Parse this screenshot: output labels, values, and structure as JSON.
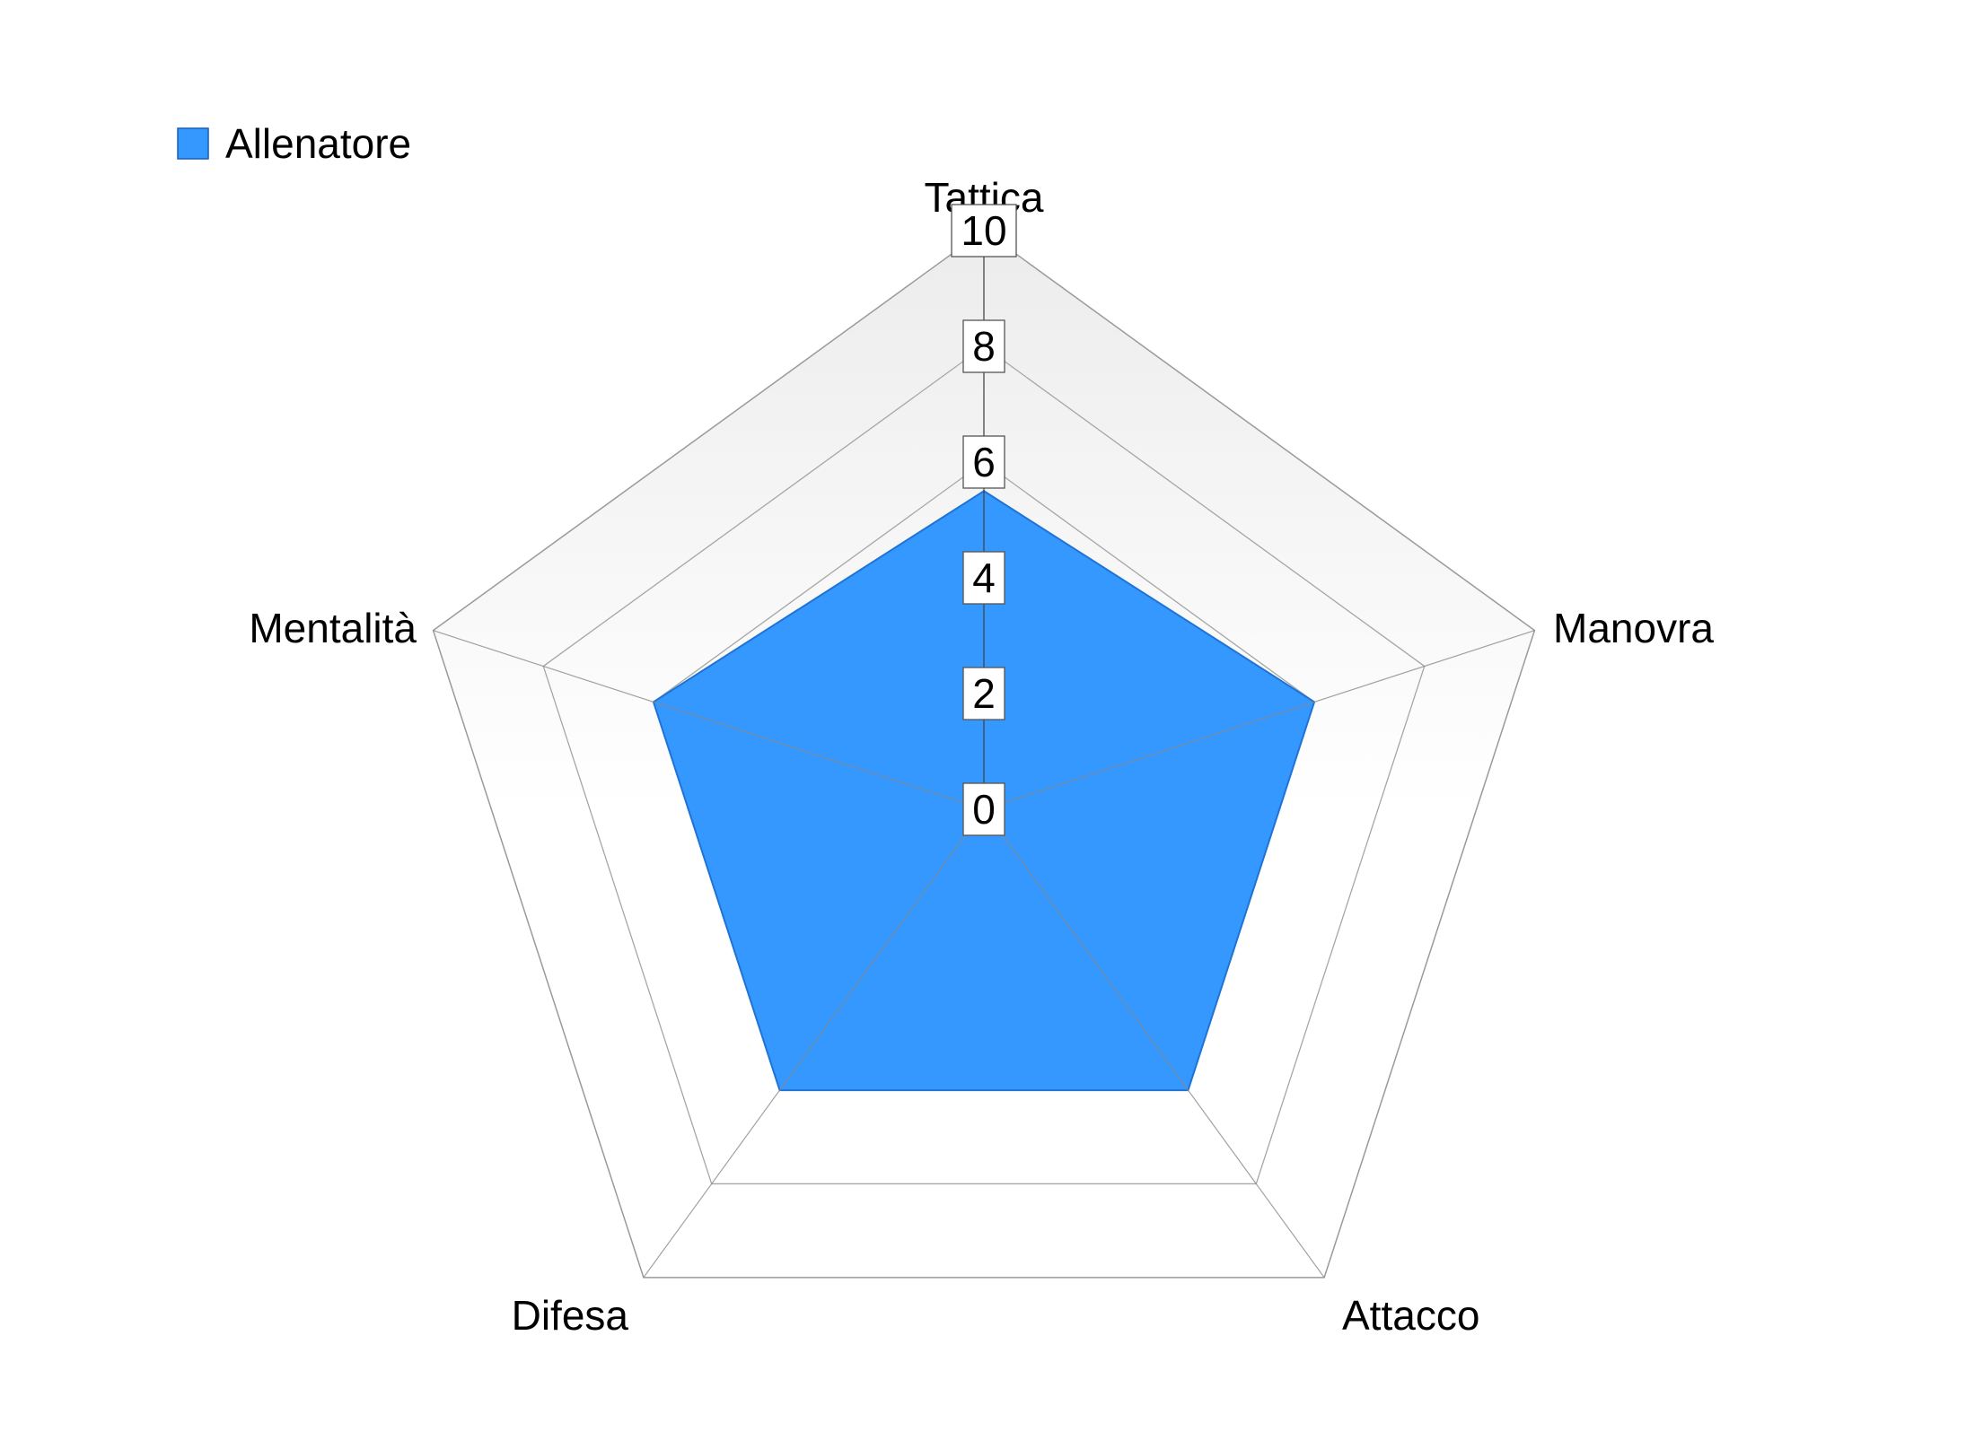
{
  "chart_data": {
    "type": "radar",
    "title": "",
    "axes": [
      "Tattica",
      "Manovra",
      "Attacco",
      "Difesa",
      "Mentalità"
    ],
    "rlim": [
      0,
      10
    ],
    "ticks": [
      "0",
      "2",
      "4",
      "6",
      "8",
      "10"
    ],
    "grid": true,
    "legend": "top-left",
    "series": [
      {
        "name": "Allenatore",
        "values": [
          5.5,
          6.0,
          6.0,
          6.0,
          6.0
        ],
        "color": "#3498FF"
      }
    ]
  }
}
